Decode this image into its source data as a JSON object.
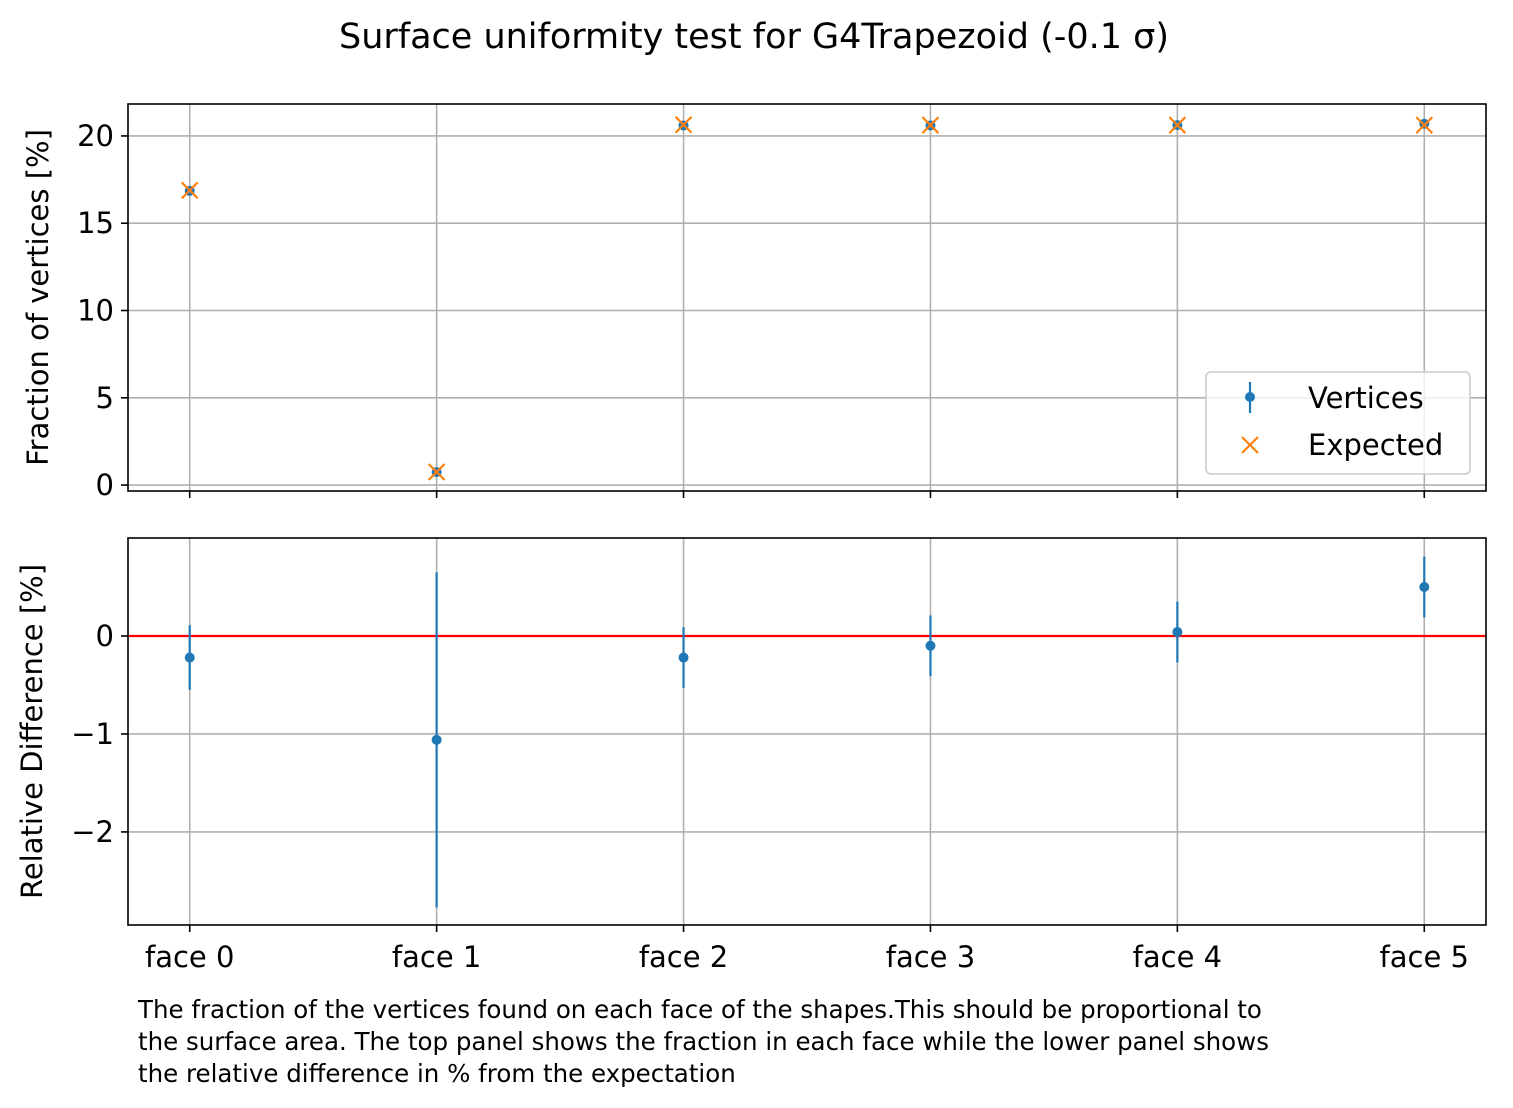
{
  "chart_data": [
    {
      "type": "scatter",
      "title": "Surface uniformity test for G4Trapezoid (-0.1 σ)",
      "ylabel": "Fraction of vertices [%]",
      "xlabel": "",
      "categories": [
        "face 0",
        "face 1",
        "face 2",
        "face 3",
        "face 4",
        "face 5"
      ],
      "xlim": [
        -0.25,
        5.25
      ],
      "ylim": [
        -0.34,
        21.83
      ],
      "yticks": [
        0,
        5,
        10,
        15,
        20
      ],
      "grid": true,
      "legend": {
        "position": "lower-right",
        "entries": [
          "Vertices",
          "Expected"
        ]
      },
      "series": [
        {
          "name": "Vertices",
          "marker": "dot-errorbar",
          "color": "#1f77b4",
          "values": [
            16.85,
            0.74,
            20.6,
            20.6,
            20.62,
            20.7
          ],
          "errors": [
            0.06,
            0.01,
            0.06,
            0.06,
            0.06,
            0.06
          ]
        },
        {
          "name": "Expected",
          "marker": "x",
          "color": "#ff7f0e",
          "values": [
            16.88,
            0.75,
            20.64,
            20.62,
            20.62,
            20.62
          ]
        }
      ]
    },
    {
      "type": "scatter",
      "ylabel": "Relative Difference [%]",
      "categories": [
        "face 0",
        "face 1",
        "face 2",
        "face 3",
        "face 4",
        "face 5"
      ],
      "xlim": [
        -0.25,
        5.25
      ],
      "ylim": [
        -2.95,
        1.0
      ],
      "yticks": [
        -2,
        -1,
        0
      ],
      "grid": true,
      "reference_line": {
        "y": 0,
        "color": "#ff0000"
      },
      "series": [
        {
          "name": "Relative difference",
          "color": "#1f77b4",
          "values": [
            -0.22,
            -1.06,
            -0.22,
            -0.1,
            0.04,
            0.5
          ],
          "errors": [
            0.33,
            1.71,
            0.31,
            0.31,
            0.31,
            0.31
          ]
        }
      ]
    }
  ],
  "caption": [
    "The fraction of the vertices found on each face of the shapes.This should be proportional to",
    "the surface area. The top panel shows the fraction in each face while the lower panel shows",
    "the relative difference in % from the expectation"
  ]
}
